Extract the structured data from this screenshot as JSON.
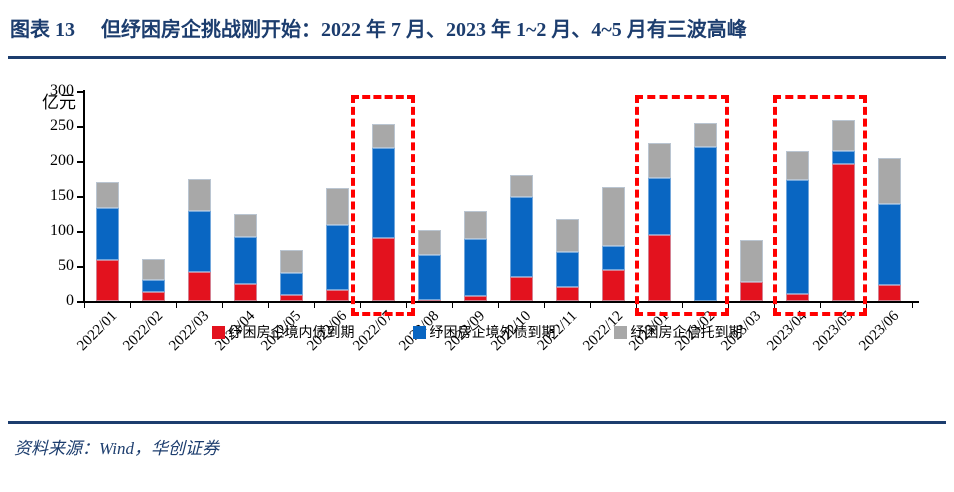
{
  "figure": {
    "label": "图表 13",
    "title": "但纾困房企挑战刚开始：2022 年 7 月、2023 年 1~2 月、4~5 月有三波高峰"
  },
  "chart_data": {
    "type": "bar",
    "stacked": true,
    "unit_label": "亿元",
    "categories": [
      "2022/01",
      "2022/02",
      "2022/03",
      "2022/04",
      "2022/05",
      "2022/06",
      "2022/07",
      "2022/08",
      "2022/09",
      "2022/10",
      "2022/11",
      "2022/12",
      "2023/01",
      "2023/02",
      "2023/03",
      "2023/04",
      "2023/05",
      "2023/06"
    ],
    "series": [
      {
        "name": "纾困房企境内债到期",
        "color": "#E3121E",
        "values": [
          59,
          13,
          41,
          24,
          8,
          16,
          90,
          2,
          7,
          35,
          20,
          45,
          95,
          0,
          27,
          10,
          196,
          23
        ]
      },
      {
        "name": "纾困房企境外债到期",
        "color": "#0966C2",
        "values": [
          74,
          17,
          87,
          68,
          32,
          93,
          129,
          64,
          82,
          113,
          50,
          34,
          81,
          220,
          0,
          163,
          18,
          115
        ]
      },
      {
        "name": "纾困房企信托到期",
        "color": "#A8A8A8",
        "values": [
          37,
          30,
          46,
          33,
          33,
          52,
          34,
          36,
          40,
          32,
          47,
          84,
          50,
          34,
          60,
          42,
          44,
          66
        ]
      }
    ],
    "totals": [
      170,
      60,
      174,
      125,
      73,
      161,
      253,
      102,
      129,
      180,
      117,
      163,
      226,
      254,
      87,
      215,
      258,
      204
    ],
    "ylim": [
      0,
      300
    ],
    "yticks": [
      0,
      50,
      100,
      150,
      200,
      250,
      300
    ],
    "grid": false,
    "legend_position": "bottom",
    "highlight_color": "#FF0000",
    "highlights": [
      {
        "from": "2022/07",
        "to": "2022/07"
      },
      {
        "from": "2023/01",
        "to": "2023/02"
      },
      {
        "from": "2023/04",
        "to": "2023/05"
      }
    ]
  },
  "footer": {
    "source_text": "资料来源：Wind，华创证券"
  }
}
